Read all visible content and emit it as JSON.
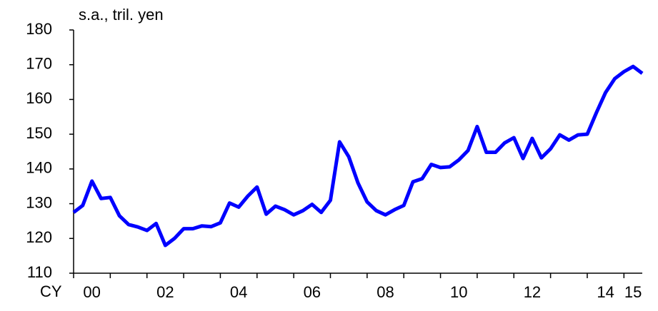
{
  "chart_data": {
    "type": "line",
    "unit_label": "s.a., tril. yen",
    "x_prefix": "CY",
    "categories": [
      null,
      null,
      "00",
      null,
      null,
      null,
      null,
      null,
      null,
      null,
      "02",
      null,
      null,
      null,
      null,
      null,
      null,
      null,
      "04",
      null,
      null,
      null,
      null,
      null,
      null,
      null,
      "06",
      null,
      null,
      null,
      null,
      null,
      null,
      null,
      "08",
      null,
      null,
      null,
      null,
      null,
      null,
      null,
      "10",
      null,
      null,
      null,
      null,
      null,
      null,
      null,
      "12",
      null,
      null,
      null,
      null,
      null,
      null,
      null,
      "14",
      null,
      null,
      "15",
      null
    ],
    "series": [
      {
        "name": "s.a., tril. yen",
        "color": "#0000ff",
        "values": [
          127.5,
          129.5,
          136.5,
          131.5,
          131.8,
          126.5,
          124,
          123.3,
          122.3,
          124.3,
          118,
          120,
          122.8,
          122.8,
          123.6,
          123.4,
          124.5,
          130.2,
          129,
          132.2,
          134.8,
          127,
          129.3,
          128.3,
          126.8,
          128,
          129.8,
          127.5,
          131,
          147.8,
          143.5,
          136,
          130.5,
          128,
          126.8,
          128.3,
          129.5,
          136.3,
          137.2,
          141.3,
          140.4,
          140.6,
          142.6,
          145.3,
          152.2,
          144.8,
          144.8,
          147.5,
          149,
          143,
          148.8,
          143.2,
          145.8,
          149.8,
          148.3,
          149.8,
          150,
          156.2,
          162,
          166,
          168,
          169.5,
          167.5
        ]
      }
    ],
    "ylim": [
      110,
      180
    ],
    "yticks": [
      110,
      120,
      130,
      140,
      150,
      160,
      170,
      180
    ],
    "grid": false
  }
}
